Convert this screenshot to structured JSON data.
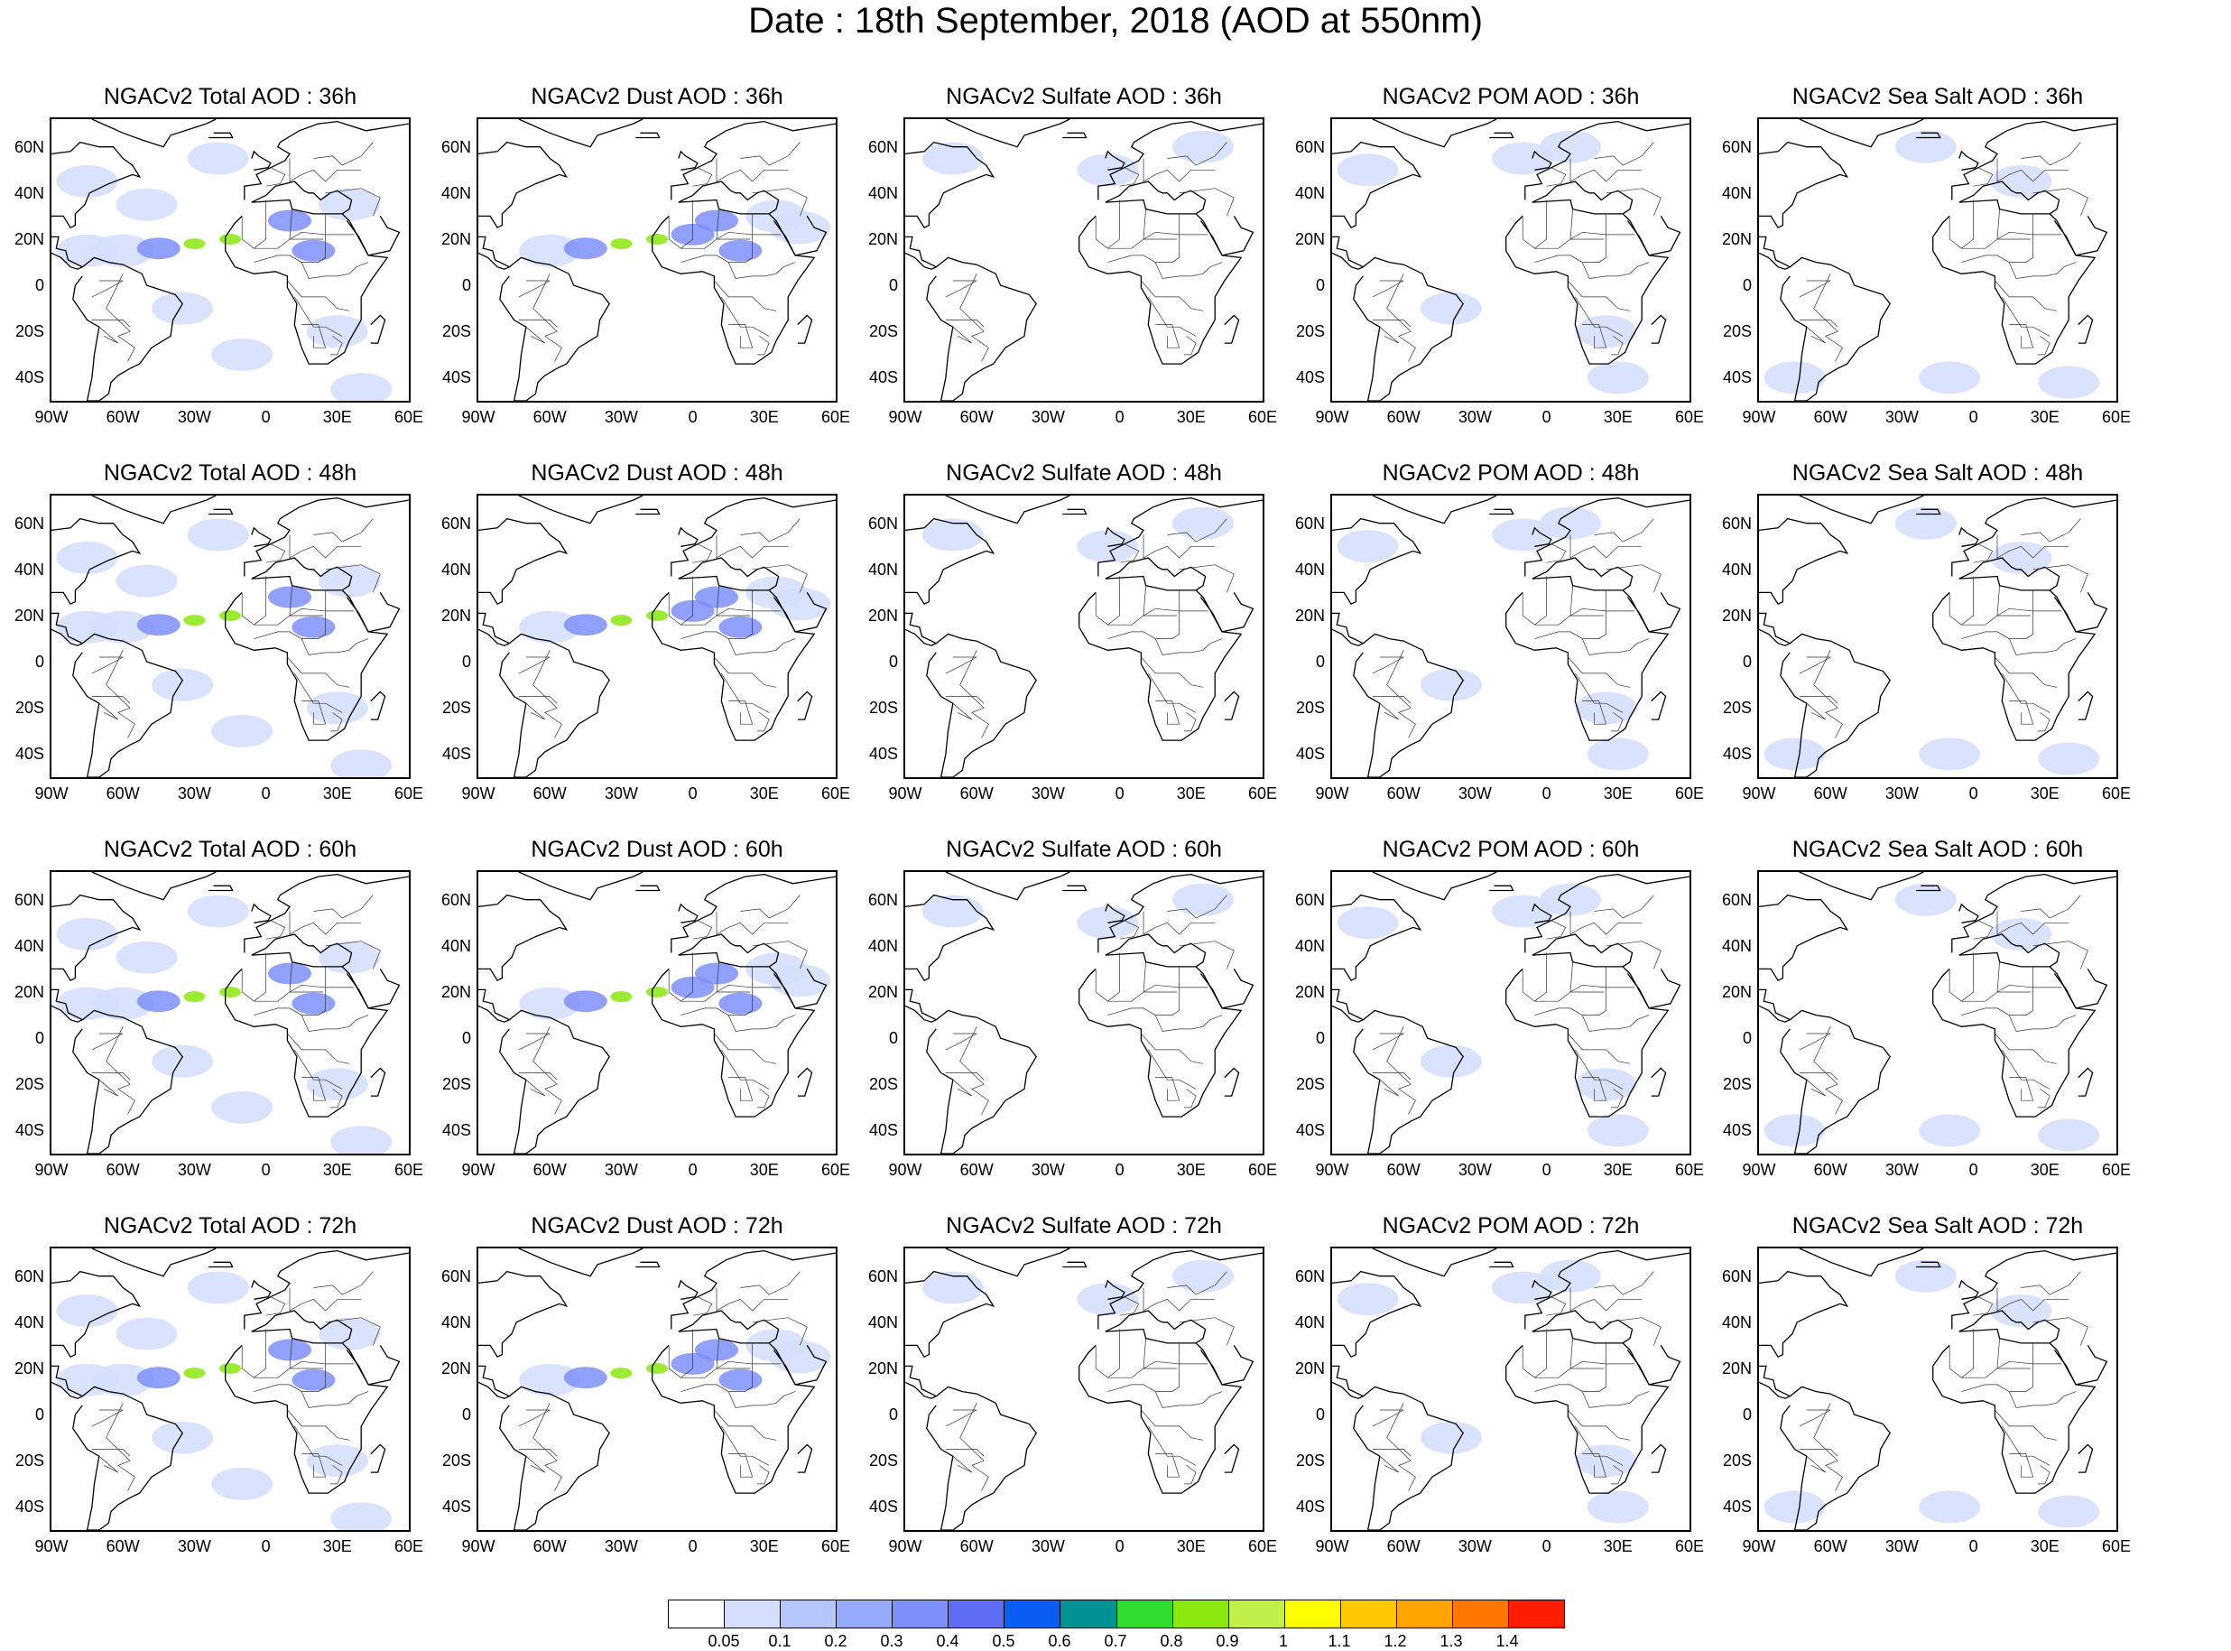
{
  "title": "Date : 18th September, 2018 (AOD at 550nm)",
  "latitude_labels": [
    "60N",
    "40N",
    "20N",
    "0",
    "20S",
    "40S"
  ],
  "longitude_labels": [
    "90W",
    "60W",
    "30W",
    "0",
    "30E",
    "60E"
  ],
  "panels": [
    {
      "title": "NGACv2 Total AOD : 36h",
      "species": "total"
    },
    {
      "title": "NGACv2 Dust AOD : 36h",
      "species": "dust"
    },
    {
      "title": "NGACv2 Sulfate AOD : 36h",
      "species": "sulfate"
    },
    {
      "title": "NGACv2 POM AOD : 36h",
      "species": "pom"
    },
    {
      "title": "NGACv2 Sea Salt AOD : 36h",
      "species": "seasalt"
    },
    {
      "title": "NGACv2 Total AOD : 48h",
      "species": "total"
    },
    {
      "title": "NGACv2 Dust AOD : 48h",
      "species": "dust"
    },
    {
      "title": "NGACv2 Sulfate AOD : 48h",
      "species": "sulfate"
    },
    {
      "title": "NGACv2 POM AOD : 48h",
      "species": "pom"
    },
    {
      "title": "NGACv2 Sea Salt AOD : 48h",
      "species": "seasalt"
    },
    {
      "title": "NGACv2 Total AOD : 60h",
      "species": "total"
    },
    {
      "title": "NGACv2 Dust AOD : 60h",
      "species": "dust"
    },
    {
      "title": "NGACv2 Sulfate AOD : 60h",
      "species": "sulfate"
    },
    {
      "title": "NGACv2 POM AOD : 60h",
      "species": "pom"
    },
    {
      "title": "NGACv2 Sea Salt AOD : 60h",
      "species": "seasalt"
    },
    {
      "title": "NGACv2 Total AOD : 72h",
      "species": "total"
    },
    {
      "title": "NGACv2 Dust AOD : 72h",
      "species": "dust"
    },
    {
      "title": "NGACv2 Sulfate AOD : 72h",
      "species": "sulfate"
    },
    {
      "title": "NGACv2 POM AOD : 72h",
      "species": "pom"
    },
    {
      "title": "NGACv2 Sea Salt  AOD : 72h",
      "species": "seasalt"
    }
  ],
  "colorbar": {
    "colors": [
      "#ffffff",
      "#d4defe",
      "#b6c6fd",
      "#97abfc",
      "#7d8ffa",
      "#5f6df5",
      "#0a5ef5",
      "#009393",
      "#2edc2e",
      "#8ae80f",
      "#c2f04a",
      "#ffff00",
      "#ffc800",
      "#ffa400",
      "#ff7700",
      "#ff1f00"
    ],
    "labels": [
      "0.05",
      "0.1",
      "0.2",
      "0.3",
      "0.4",
      "0.5",
      "0.6",
      "0.7",
      "0.8",
      "0.9",
      "1",
      "1.1",
      "1.2",
      "1.3",
      "1.4"
    ]
  }
}
